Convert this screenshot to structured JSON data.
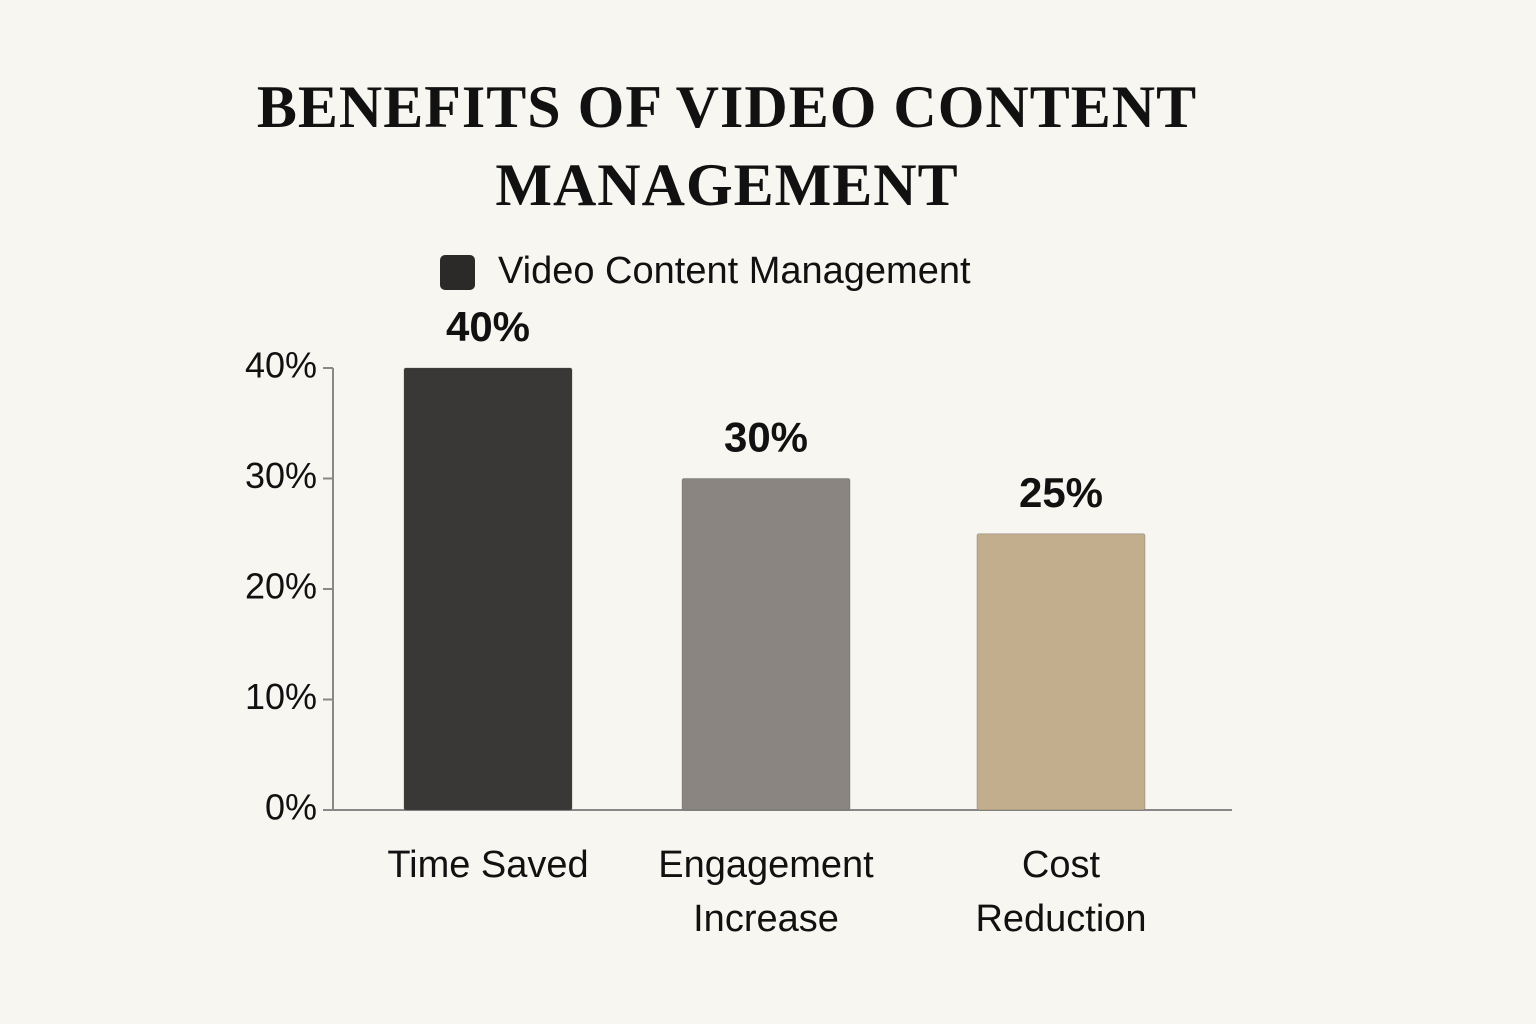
{
  "chart_data": {
    "type": "bar",
    "title": "BENEFITS OF VIDEO CONTENT MANAGEMENT",
    "categories": [
      "Time Saved",
      "Engagement Increase",
      "Cost Reduction"
    ],
    "series": [
      {
        "name": "Video Content Management",
        "color": "#2b2a28",
        "colors": [
          "#3a3836",
          "#8a8580",
          "#c2ad8c"
        ],
        "values": [
          40,
          30,
          25
        ],
        "value_labels": [
          "40%",
          "30%",
          "25%"
        ]
      }
    ],
    "ylim": [
      0,
      40
    ],
    "yticks": [
      {
        "value": 0,
        "label": "0%"
      },
      {
        "value": 10,
        "label": "10%"
      },
      {
        "value": 20,
        "label": "20%"
      },
      {
        "value": 30,
        "label": "30%"
      },
      {
        "value": 40,
        "label": "40%"
      }
    ],
    "legend": "top"
  }
}
